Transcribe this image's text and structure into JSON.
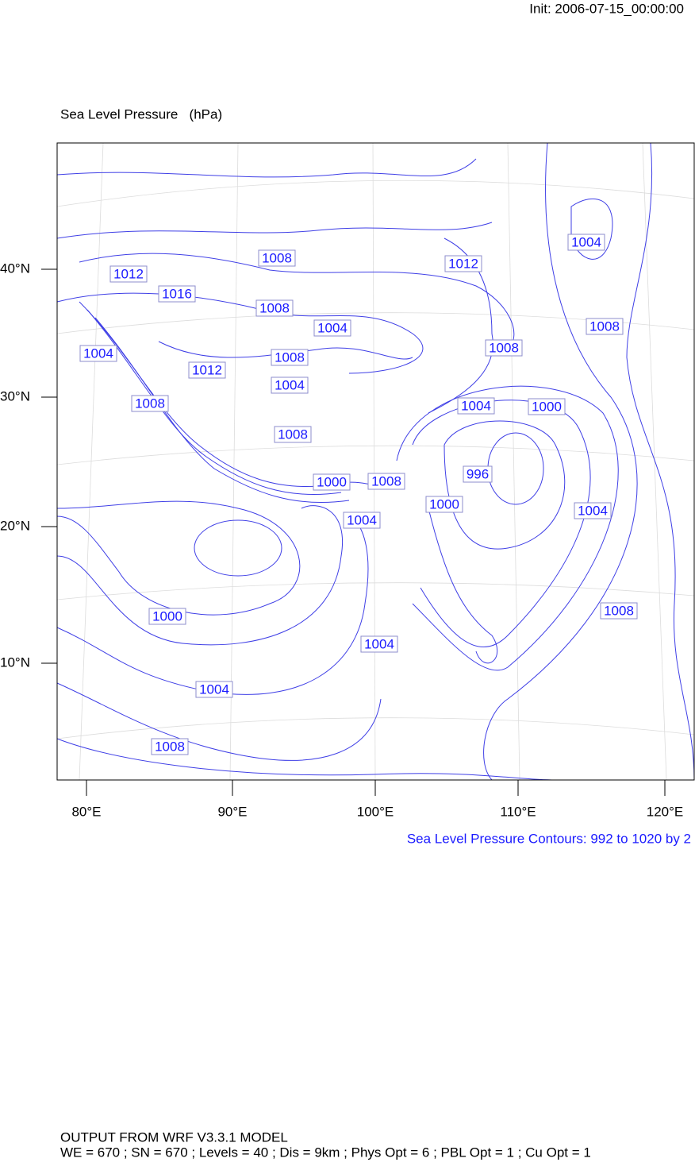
{
  "header": {
    "init": "Init: 2006-07-15_00:00:00"
  },
  "plot": {
    "title": "Sea Level Pressure   (hPa)",
    "lat_labels": [
      "40°N",
      "30°N",
      "20°N",
      "10°N"
    ],
    "lon_labels": [
      "80°E",
      "90°E",
      "100°E",
      "110°E",
      "120°E"
    ],
    "contour_labels": [
      1004,
      1008,
      1012,
      1012,
      1016,
      1008,
      1004,
      1008,
      1008,
      1004,
      1008,
      1012,
      1004,
      1008,
      1004,
      1000,
      1008,
      996,
      1000,
      1008,
      1000,
      1004,
      1004,
      1008,
      1000,
      1004,
      1004,
      1008
    ],
    "contour_note": "Sea Level Pressure Contours: 992 to 1020 by 2"
  },
  "footer": {
    "line1": "OUTPUT FROM WRF V3.3.1 MODEL",
    "line2": "WE = 670 ; SN = 670 ; Levels = 40 ; Dis = 9km ; Phys Opt = 6 ; PBL Opt = 1 ; Cu Opt = 1"
  }
}
